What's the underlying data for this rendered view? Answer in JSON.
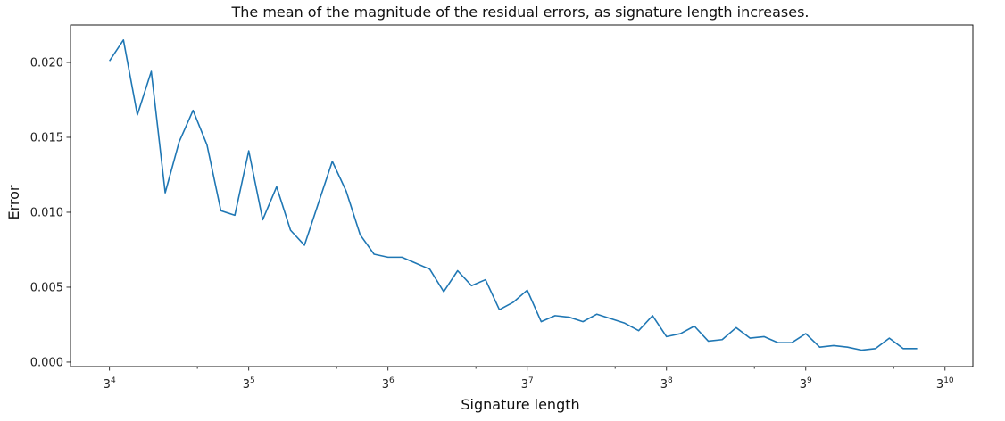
{
  "chart_data": {
    "type": "line",
    "title": "The mean of the magnitude of the residual errors, as signature length increases.",
    "xlabel": "Signature length",
    "ylabel": "Error",
    "xscale": "log3",
    "xlim_exponent": [
      3.72,
      10.2
    ],
    "ylim": [
      -0.0003,
      0.0225
    ],
    "x_ticks": [
      {
        "exp": 4,
        "base": "3",
        "sup": "4"
      },
      {
        "exp": 5,
        "base": "3",
        "sup": "5"
      },
      {
        "exp": 6,
        "base": "3",
        "sup": "6"
      },
      {
        "exp": 7,
        "base": "3",
        "sup": "7"
      },
      {
        "exp": 8,
        "base": "3",
        "sup": "8"
      },
      {
        "exp": 9,
        "base": "3",
        "sup": "9"
      },
      {
        "exp": 10,
        "base": "3",
        "sup": "10"
      }
    ],
    "y_ticks": [
      {
        "value": 0.0,
        "label": "0.000"
      },
      {
        "value": 0.005,
        "label": "0.005"
      },
      {
        "value": 0.01,
        "label": "0.010"
      },
      {
        "value": 0.015,
        "label": "0.015"
      },
      {
        "value": 0.02,
        "label": "0.020"
      }
    ],
    "grid": false,
    "series": [
      {
        "name": "Error",
        "color": "#1f77b4",
        "x_exponent": [
          4.0,
          4.1,
          4.2,
          4.3,
          4.4,
          4.5,
          4.6,
          4.7,
          4.8,
          4.9,
          5.0,
          5.1,
          5.2,
          5.3,
          5.4,
          5.5,
          5.6,
          5.7,
          5.8,
          5.9,
          6.0,
          6.1,
          6.2,
          6.3,
          6.4,
          6.5,
          6.6,
          6.7,
          6.8,
          6.9,
          7.0,
          7.1,
          7.2,
          7.3,
          7.4,
          7.5,
          7.6,
          7.7,
          7.8,
          7.9,
          8.0,
          8.1,
          8.2,
          8.3,
          8.4,
          8.5,
          8.6,
          8.7,
          8.8,
          8.9,
          9.0,
          9.1,
          9.2,
          9.3,
          9.4,
          9.5,
          9.6,
          9.7,
          9.8
        ],
        "values": [
          0.0201,
          0.0215,
          0.0165,
          0.0194,
          0.0113,
          0.0147,
          0.0168,
          0.0145,
          0.0101,
          0.0098,
          0.0141,
          0.0095,
          0.0117,
          0.0088,
          0.0078,
          0.0106,
          0.0134,
          0.0114,
          0.0085,
          0.0072,
          0.007,
          0.007,
          0.0066,
          0.0062,
          0.0047,
          0.0061,
          0.0051,
          0.0055,
          0.0035,
          0.004,
          0.0048,
          0.0027,
          0.0031,
          0.003,
          0.0027,
          0.0032,
          0.0029,
          0.0026,
          0.0021,
          0.0031,
          0.0017,
          0.0019,
          0.0024,
          0.0014,
          0.0015,
          0.0023,
          0.0016,
          0.0017,
          0.0013,
          0.0013,
          0.0019,
          0.001,
          0.0011,
          0.001,
          0.0008,
          0.0009,
          0.0016,
          0.0009,
          0.0009
        ]
      }
    ]
  }
}
